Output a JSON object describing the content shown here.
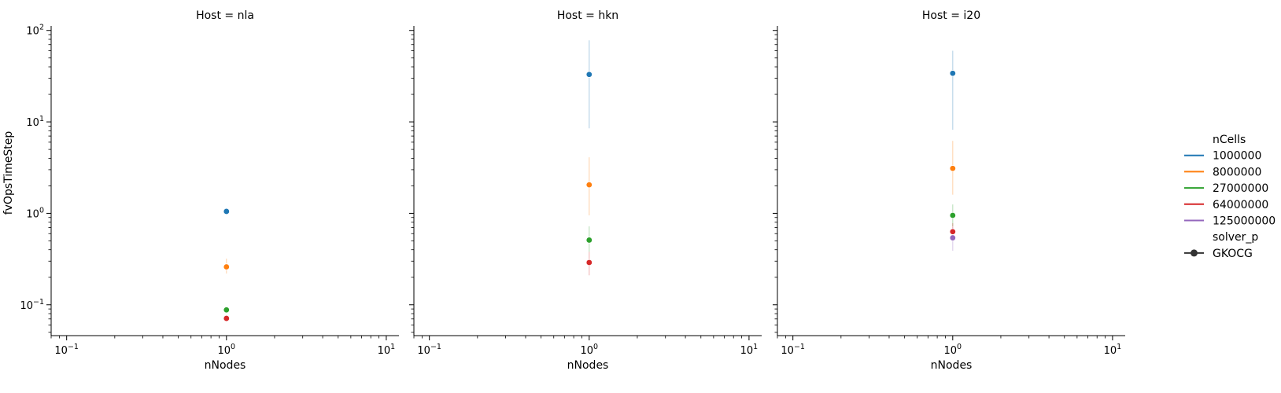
{
  "chart_data": {
    "type": "scatter",
    "x_scale": "log",
    "y_scale": "log",
    "xlim": [
      0.08,
      12
    ],
    "ylim": [
      0.046,
      112
    ],
    "xlabel": "nNodes",
    "ylabel": "fvOpsTimeStep",
    "x_ticks": [
      {
        "value": 0.1,
        "base": "10",
        "exp": "−1"
      },
      {
        "value": 1,
        "base": "10",
        "exp": "0"
      },
      {
        "value": 10,
        "base": "10",
        "exp": "1"
      }
    ],
    "y_ticks": [
      {
        "value": 0.1,
        "base": "10",
        "exp": "−1"
      },
      {
        "value": 1,
        "base": "10",
        "exp": "0"
      },
      {
        "value": 10,
        "base": "10",
        "exp": "1"
      },
      {
        "value": 100,
        "base": "10",
        "exp": "2"
      }
    ],
    "grid": false,
    "legend_position": "right",
    "legend": {
      "hue_title": "nCells",
      "hue_entries": [
        {
          "label": "1000000",
          "color": "#1f77b4"
        },
        {
          "label": "8000000",
          "color": "#ff7f0e"
        },
        {
          "label": "27000000",
          "color": "#2ca02c"
        },
        {
          "label": "64000000",
          "color": "#d62728"
        },
        {
          "label": "125000000",
          "color": "#9467bd"
        }
      ],
      "style_title": "solver_p",
      "style_entries": [
        {
          "label": "GKOCG",
          "color": "#333333"
        }
      ]
    },
    "panels": [
      {
        "title": "Host = nla",
        "points": [
          {
            "nCells": "1000000",
            "x": 1,
            "y": 1.05,
            "err": [
              1.0,
              1.1
            ],
            "color": "#1f77b4"
          },
          {
            "nCells": "8000000",
            "x": 1,
            "y": 0.26,
            "err": [
              0.22,
              0.32
            ],
            "color": "#ff7f0e"
          },
          {
            "nCells": "27000000",
            "x": 1,
            "y": 0.088,
            "err": [
              0.085,
              0.091
            ],
            "color": "#2ca02c"
          },
          {
            "nCells": "64000000",
            "x": 1,
            "y": 0.071,
            "err": [
              0.069,
              0.073
            ],
            "color": "#d62728"
          }
        ]
      },
      {
        "title": "Host = hkn",
        "points": [
          {
            "nCells": "1000000",
            "x": 1,
            "y": 33,
            "err": [
              8.5,
              78
            ],
            "color": "#1f77b4"
          },
          {
            "nCells": "8000000",
            "x": 1,
            "y": 2.05,
            "err": [
              0.95,
              4.1
            ],
            "color": "#ff7f0e"
          },
          {
            "nCells": "27000000",
            "x": 1,
            "y": 0.51,
            "err": [
              0.38,
              0.72
            ],
            "color": "#2ca02c"
          },
          {
            "nCells": "64000000",
            "x": 1,
            "y": 0.29,
            "err": [
              0.21,
              0.38
            ],
            "color": "#d62728"
          }
        ]
      },
      {
        "title": "Host = i20",
        "points": [
          {
            "nCells": "1000000",
            "x": 1,
            "y": 34,
            "err": [
              8.2,
              60
            ],
            "color": "#1f77b4"
          },
          {
            "nCells": "8000000",
            "x": 1,
            "y": 3.1,
            "err": [
              1.6,
              6.2
            ],
            "color": "#ff7f0e"
          },
          {
            "nCells": "27000000",
            "x": 1,
            "y": 0.95,
            "err": [
              0.72,
              1.25
            ],
            "color": "#2ca02c"
          },
          {
            "nCells": "64000000",
            "x": 1,
            "y": 0.63,
            "err": [
              0.5,
              0.78
            ],
            "color": "#d62728"
          },
          {
            "nCells": "125000000",
            "x": 1,
            "y": 0.54,
            "err": [
              0.39,
              0.7
            ],
            "color": "#9467bd"
          }
        ]
      }
    ]
  }
}
